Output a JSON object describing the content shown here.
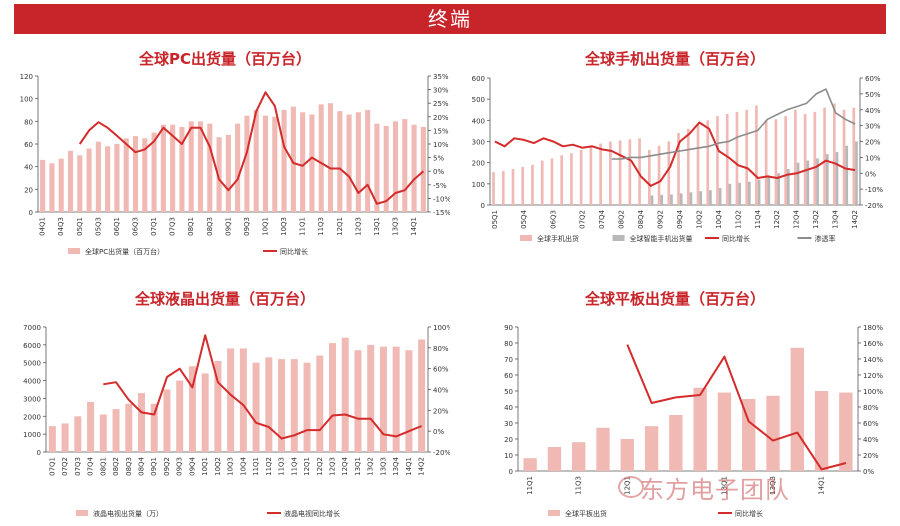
{
  "header": {
    "title": "终端"
  },
  "watermark": {
    "text": "东方电子团队"
  },
  "colors": {
    "bar": "#f0b9b4",
    "bar2": "#b8b8b8",
    "line": "#d42b2b",
    "line2": "#8c8c8c",
    "axis": "#555555"
  },
  "chart_data": [
    {
      "id": "pc",
      "type": "bar",
      "title": "全球PC出货量（百万台）",
      "categories": [
        "04Q1",
        "04Q2",
        "04Q3",
        "04Q4",
        "05Q1",
        "05Q2",
        "05Q3",
        "05Q4",
        "06Q1",
        "06Q2",
        "06Q3",
        "06Q4",
        "07Q1",
        "07Q2",
        "07Q3",
        "07Q4",
        "08Q1",
        "08Q2",
        "08Q3",
        "08Q4",
        "09Q1",
        "09Q2",
        "09Q3",
        "09Q4",
        "10Q1",
        "10Q2",
        "10Q3",
        "10Q4",
        "11Q1",
        "11Q2",
        "11Q3",
        "11Q4",
        "12Q1",
        "12Q2",
        "12Q3",
        "12Q4",
        "13Q1",
        "13Q2",
        "13Q3",
        "13Q4",
        "14Q1",
        "14Q2"
      ],
      "tick_labels": [
        "04Q1",
        "04Q3",
        "05Q1",
        "05Q3",
        "06Q1",
        "06Q3",
        "07Q1",
        "07Q3",
        "08Q1",
        "08Q3",
        "09Q1",
        "09Q3",
        "10Q1",
        "10Q3",
        "11Q1",
        "11Q3",
        "12Q1",
        "12Q3",
        "13Q1",
        "13Q3",
        "14Q1"
      ],
      "series": [
        {
          "name": "全球PC出货量（百万台）",
          "kind": "bar",
          "axis": "left",
          "values": [
            46,
            43,
            47,
            54,
            50,
            56,
            62,
            58,
            60,
            65,
            67,
            65,
            70,
            77,
            77,
            75,
            80,
            80,
            78,
            66,
            68,
            78,
            85,
            90,
            85,
            84,
            90,
            93,
            88,
            86,
            95,
            96,
            89,
            86,
            88,
            90,
            78,
            76,
            80,
            82,
            77,
            75
          ]
        },
        {
          "name": "同比增长",
          "kind": "line",
          "axis": "right",
          "values": [
            null,
            null,
            null,
            null,
            10,
            15,
            18,
            16,
            13,
            10,
            7,
            8,
            11,
            16,
            13,
            10,
            16,
            16,
            9,
            -3,
            -7,
            -3,
            7,
            22,
            29,
            24,
            9,
            3,
            2,
            5,
            3,
            1,
            1,
            -2,
            -8,
            -5,
            -12,
            -11,
            -8,
            -7,
            -3,
            0
          ]
        }
      ],
      "left_axis": {
        "min": 0,
        "max": 120,
        "ticks": [
          0,
          20,
          40,
          60,
          80,
          100,
          120
        ]
      },
      "right_axis": {
        "min": -15,
        "max": 35,
        "ticks": [
          "35%",
          "30%",
          "25%",
          "20%",
          "15%",
          "10%",
          "5%",
          "0%",
          "-5%",
          "-10%",
          "-15%"
        ]
      },
      "legend": [
        {
          "label": "全球PC出货量（百万台）",
          "kind": "bar"
        },
        {
          "label": "同比增长",
          "kind": "line"
        }
      ],
      "legend_position": "bottom"
    },
    {
      "id": "phone",
      "type": "bar",
      "title": "全球手机出货量（百万台）",
      "categories": [
        "05Q1",
        "05Q2",
        "05Q3",
        "05Q4",
        "06Q1",
        "06Q2",
        "06Q3",
        "06Q4",
        "07Q1",
        "07Q2",
        "07Q3",
        "07Q4",
        "08Q1",
        "08Q2",
        "08Q3",
        "08Q4",
        "09Q1",
        "09Q2",
        "09Q3",
        "09Q4",
        "10Q1",
        "10Q2",
        "10Q3",
        "10Q4",
        "11Q1",
        "11Q2",
        "11Q3",
        "11Q4",
        "12Q1",
        "12Q2",
        "12Q3",
        "12Q4",
        "13Q1",
        "13Q2",
        "13Q3",
        "13Q4",
        "14Q1",
        "14Q2"
      ],
      "tick_labels": [
        "05Q1",
        "05Q4",
        "06Q3",
        "07Q2",
        "07Q4",
        "08Q2",
        "08Q4",
        "09Q2",
        "09Q4",
        "10Q2",
        "10Q4",
        "11Q2",
        "11Q4",
        "12Q2",
        "12Q4",
        "13Q2",
        "13Q4",
        "14Q2"
      ],
      "series": [
        {
          "name": "全球手机出货",
          "kind": "bar",
          "axis": "left",
          "values": [
            155,
            160,
            170,
            180,
            190,
            210,
            220,
            235,
            245,
            260,
            275,
            290,
            300,
            305,
            310,
            315,
            260,
            280,
            300,
            340,
            360,
            380,
            400,
            420,
            430,
            440,
            450,
            470,
            400,
            405,
            420,
            450,
            430,
            440,
            460,
            480,
            450,
            460
          ]
        },
        {
          "name": "全球智能手机出货量",
          "kind": "bar",
          "axis": "left",
          "values": [
            0,
            0,
            0,
            0,
            0,
            0,
            0,
            0,
            0,
            0,
            0,
            0,
            0,
            0,
            0,
            0,
            45,
            48,
            50,
            55,
            60,
            65,
            70,
            80,
            100,
            105,
            110,
            120,
            140,
            150,
            170,
            200,
            210,
            220,
            240,
            250,
            280,
            300
          ]
        },
        {
          "name": "同比增长",
          "kind": "line",
          "axis": "right",
          "values": [
            20,
            17,
            22,
            21,
            19,
            22,
            20,
            17,
            18,
            16,
            17,
            15,
            14,
            11,
            8,
            -2,
            -8,
            -5,
            4,
            20,
            25,
            32,
            28,
            14,
            10,
            5,
            3,
            -3,
            -2,
            -3,
            -1,
            0,
            2,
            4,
            8,
            6,
            3,
            2
          ]
        },
        {
          "name": "渗透率",
          "kind": "line",
          "axis": "right",
          "values": [
            null,
            null,
            null,
            null,
            null,
            null,
            null,
            null,
            null,
            null,
            null,
            null,
            9,
            9,
            10,
            10,
            11,
            12,
            13,
            14,
            15,
            16,
            17,
            19,
            20,
            23,
            25,
            27,
            34,
            37,
            40,
            42,
            44,
            50,
            53,
            38,
            34,
            31
          ]
        }
      ],
      "left_axis": {
        "min": 0,
        "max": 600,
        "ticks": [
          0,
          100,
          200,
          300,
          400,
          500,
          600
        ]
      },
      "right_axis": {
        "min": -20,
        "max": 60,
        "ticks": [
          "60%",
          "50%",
          "40%",
          "30%",
          "20%",
          "10%",
          "0%",
          "-10%",
          "-20%"
        ]
      },
      "legend": [
        {
          "label": "全球手机出货",
          "kind": "bar"
        },
        {
          "label": "全球智能手机出货量",
          "kind": "bar2"
        },
        {
          "label": "同比增长",
          "kind": "line"
        },
        {
          "label": "渗透率",
          "kind": "line2"
        }
      ],
      "legend_position": "bottom"
    },
    {
      "id": "lcd",
      "type": "bar",
      "title": "全球液晶出货量（百万台）",
      "categories": [
        "07Q1",
        "07Q2",
        "07Q3",
        "07Q4",
        "08Q1",
        "08Q2",
        "08Q3",
        "08Q4",
        "09Q1",
        "09Q2",
        "09Q3",
        "09Q4",
        "10Q1",
        "10Q2",
        "10Q3",
        "10Q4",
        "11Q1",
        "11Q2",
        "11Q3",
        "11Q4",
        "12Q1",
        "12Q2",
        "12Q3",
        "12Q4",
        "13Q1",
        "13Q2",
        "13Q3",
        "13Q4",
        "14Q1",
        "14Q2"
      ],
      "tick_labels": [
        "07Q1",
        "07Q2",
        "07Q3",
        "07Q4",
        "08Q1",
        "08Q2",
        "08Q3",
        "08Q4",
        "09Q1",
        "09Q2",
        "09Q3",
        "09Q4",
        "10Q1",
        "10Q2",
        "10Q3",
        "10Q4",
        "11Q1",
        "11Q2",
        "11Q3",
        "11Q4",
        "12Q1",
        "12Q2",
        "12Q3",
        "12Q4",
        "13Q1",
        "13Q2",
        "13Q3",
        "13Q4",
        "14Q1",
        "14Q2"
      ],
      "series": [
        {
          "name": "液晶电视出货量（万）",
          "kind": "bar",
          "axis": "left",
          "values": [
            1450,
            1600,
            2000,
            2800,
            2100,
            2400,
            2700,
            3300,
            2700,
            3500,
            4000,
            4800,
            4400,
            5100,
            5800,
            5800,
            5000,
            5300,
            5200,
            5200,
            5000,
            5400,
            6100,
            6400,
            5700,
            6000,
            5900,
            5900,
            5700,
            6300
          ]
        },
        {
          "name": "液晶电视同比增长",
          "kind": "line",
          "axis": "right",
          "values": [
            null,
            null,
            null,
            null,
            45,
            47,
            30,
            18,
            16,
            52,
            60,
            42,
            92,
            47,
            35,
            25,
            8,
            4,
            -7,
            -4,
            1,
            1,
            15,
            16,
            12,
            12,
            -3,
            -5,
            0,
            5
          ]
        }
      ],
      "left_axis": {
        "min": 0,
        "max": 7000,
        "ticks": [
          0,
          1000,
          2000,
          3000,
          4000,
          5000,
          6000,
          7000
        ]
      },
      "right_axis": {
        "min": -20,
        "max": 100,
        "ticks": [
          "100%",
          "80%",
          "60%",
          "40%",
          "20%",
          "0%",
          "-20%"
        ]
      },
      "legend": [
        {
          "label": "液晶电视出货量（万）",
          "kind": "bar"
        },
        {
          "label": "液晶电视同比增长",
          "kind": "line"
        }
      ],
      "legend_position": "bottom"
    },
    {
      "id": "tablet",
      "type": "bar",
      "title": "全球平板出货量（百万台）",
      "categories": [
        "11Q1",
        "11Q2",
        "11Q3",
        "11Q4",
        "12Q1",
        "12Q2",
        "12Q3",
        "12Q4",
        "13Q1",
        "13Q2",
        "13Q3",
        "13Q4",
        "14Q1",
        "14Q2"
      ],
      "tick_labels": [
        "11Q1",
        "11Q3",
        "12Q1",
        "13Q1",
        "13Q3",
        "14Q1"
      ],
      "series": [
        {
          "name": "全球平板出货",
          "kind": "bar",
          "axis": "left",
          "values": [
            8,
            15,
            18,
            27,
            20,
            28,
            35,
            52,
            49,
            45,
            47,
            77,
            50,
            49
          ]
        },
        {
          "name": "同比增长",
          "kind": "line",
          "axis": "right",
          "values": [
            null,
            null,
            null,
            null,
            158,
            85,
            92,
            95,
            143,
            62,
            38,
            48,
            2,
            10
          ]
        }
      ],
      "left_axis": {
        "min": 0,
        "max": 90,
        "ticks": [
          0,
          10,
          20,
          30,
          40,
          50,
          60,
          70,
          80,
          90
        ]
      },
      "right_axis": {
        "min": 0,
        "max": 180,
        "ticks": [
          "180%",
          "160%",
          "140%",
          "120%",
          "100%",
          "80%",
          "60%",
          "40%",
          "20%",
          "0%"
        ]
      },
      "legend": [
        {
          "label": "全球平板出货",
          "kind": "bar"
        },
        {
          "label": "同比增长",
          "kind": "line"
        }
      ],
      "legend_position": "bottom"
    }
  ]
}
